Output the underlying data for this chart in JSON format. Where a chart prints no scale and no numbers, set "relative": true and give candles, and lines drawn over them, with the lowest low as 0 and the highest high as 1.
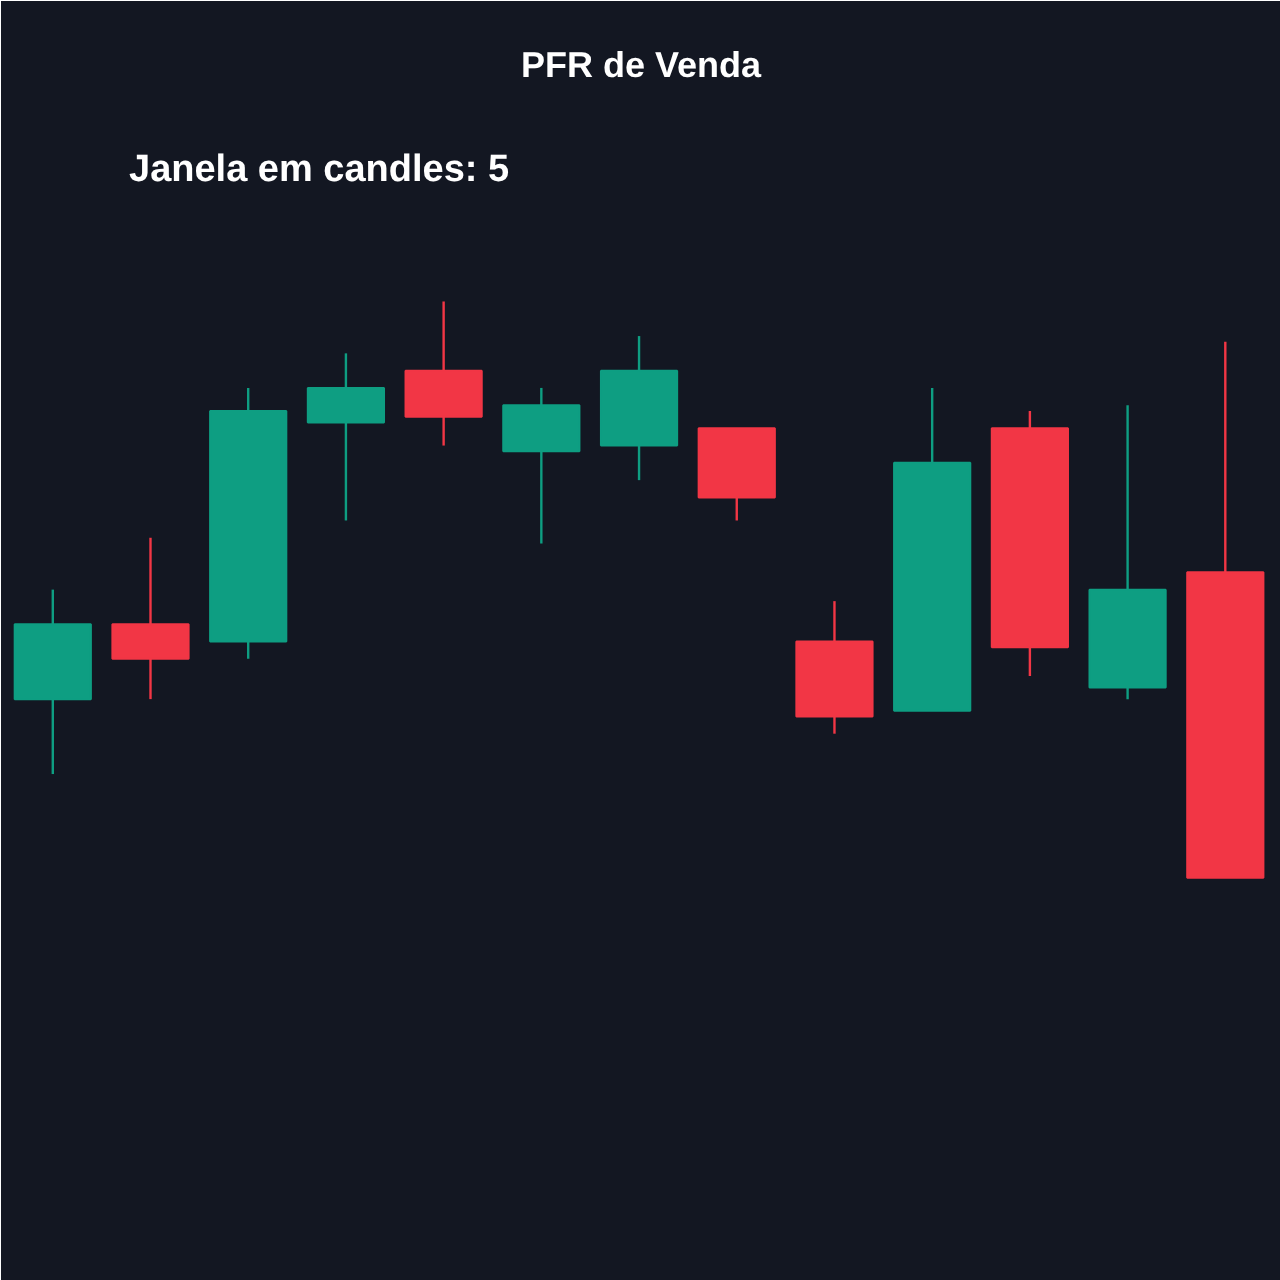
{
  "chart_data": {
    "type": "candlestick",
    "title": "PFR de Venda",
    "annotations": [
      "Janela em candles: 5"
    ],
    "relative": true,
    "categories": [
      null,
      null,
      null,
      null,
      null,
      null,
      null,
      null,
      null,
      null,
      null,
      null,
      null
    ],
    "ohlc": [
      [
        0.31,
        0.5,
        0.18,
        0.44
      ],
      [
        0.44,
        0.59,
        0.31,
        0.38
      ],
      [
        0.41,
        0.85,
        0.38,
        0.81
      ],
      [
        0.79,
        0.91,
        0.62,
        0.85
      ],
      [
        0.88,
        1.0,
        0.75,
        0.8
      ],
      [
        0.74,
        0.85,
        0.58,
        0.82
      ],
      [
        0.75,
        0.94,
        0.69,
        0.88
      ],
      [
        0.78,
        0.78,
        0.62,
        0.66
      ],
      [
        0.41,
        0.48,
        0.25,
        0.28
      ],
      [
        0.29,
        0.85,
        0.29,
        0.72
      ],
      [
        0.78,
        0.81,
        0.35,
        0.4
      ],
      [
        0.33,
        0.82,
        0.31,
        0.5
      ],
      [
        0.53,
        0.93,
        0.0,
        0.0
      ]
    ],
    "colors": [
      "#0e9e82",
      "#f23645",
      "#0e9e82",
      "#0e9e82",
      "#f23645",
      "#0e9e82",
      "#0e9e82",
      "#f23645",
      "#f23645",
      "#0e9e82",
      "#f23645",
      "#0e9e82",
      "#f23645"
    ]
  }
}
